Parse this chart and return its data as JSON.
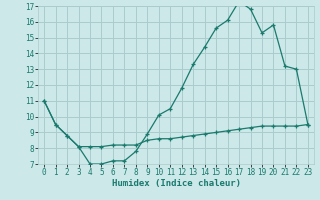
{
  "xlabel": "Humidex (Indice chaleur)",
  "bg_color": "#cce8e8",
  "grid_color": "#aacccc",
  "line_color": "#1a7a6e",
  "xlim": [
    -0.5,
    23.5
  ],
  "ylim": [
    7,
    17
  ],
  "yticks": [
    7,
    8,
    9,
    10,
    11,
    12,
    13,
    14,
    15,
    16,
    17
  ],
  "xticks": [
    0,
    1,
    2,
    3,
    4,
    5,
    6,
    7,
    8,
    9,
    10,
    11,
    12,
    13,
    14,
    15,
    16,
    17,
    18,
    19,
    20,
    21,
    22,
    23
  ],
  "series1_x": [
    0,
    1,
    2,
    3,
    4,
    5,
    6,
    7,
    8,
    9,
    10,
    11,
    12,
    13,
    14,
    15,
    16,
    17,
    18,
    19,
    20,
    21,
    22,
    23
  ],
  "series1_y": [
    11.0,
    9.5,
    8.8,
    8.1,
    7.0,
    7.0,
    7.2,
    7.2,
    7.8,
    8.9,
    10.1,
    10.5,
    11.8,
    13.3,
    14.4,
    15.6,
    16.1,
    17.3,
    16.8,
    15.3,
    15.8,
    13.2,
    13.0,
    9.5
  ],
  "series2_x": [
    0,
    1,
    2,
    3,
    4,
    5,
    6,
    7,
    8,
    9,
    10,
    11,
    12,
    13,
    14,
    15,
    16,
    17,
    18,
    19,
    20,
    21,
    22,
    23
  ],
  "series2_y": [
    11.0,
    9.5,
    8.8,
    8.1,
    8.1,
    8.1,
    8.2,
    8.2,
    8.2,
    8.5,
    8.6,
    8.6,
    8.7,
    8.8,
    8.9,
    9.0,
    9.1,
    9.2,
    9.3,
    9.4,
    9.4,
    9.4,
    9.4,
    9.5
  ],
  "tick_fontsize": 5.5,
  "xlabel_fontsize": 6.5
}
